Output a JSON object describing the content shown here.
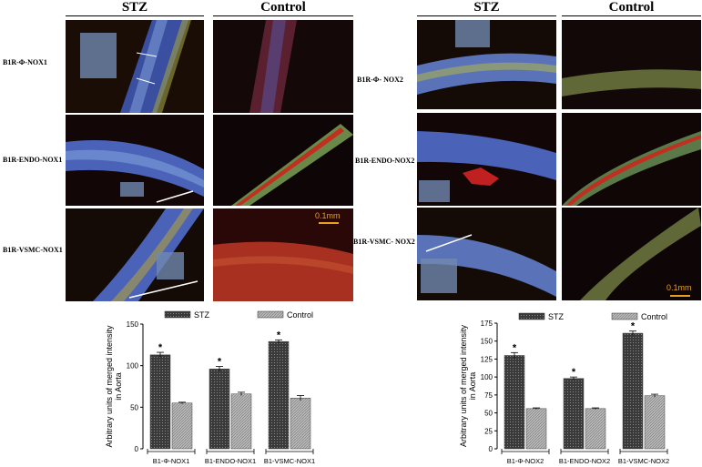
{
  "headers": {
    "left_stz": "STZ",
    "left_control": "Control",
    "right_stz": "STZ",
    "right_control": "Control"
  },
  "row_labels": {
    "left": [
      "B1R-Φ-NOX1",
      "B1R-ENDO-NOX1",
      "B1R-VSMC-NOX1"
    ],
    "right": [
      "B1R-Φ- NOX2",
      "B1R-ENDO-NOX2",
      "B1R-VSMC- NOX2"
    ]
  },
  "scale_bars": {
    "left": "0.1mm",
    "right": "0.1mm"
  },
  "colors": {
    "stz_bar": "#3a3a3a",
    "control_bar": "#b8b8b8",
    "scale_bar": "#e8a020"
  },
  "chart_data": [
    {
      "type": "bar",
      "categories": [
        "B1-Φ-NOX1",
        "B1-ENDO-NOX1",
        "B1-VSMC-NOX1"
      ],
      "series": [
        {
          "name": "STZ",
          "values": [
            113,
            96,
            129
          ],
          "errors": [
            3,
            3,
            2
          ]
        },
        {
          "name": "Control",
          "values": [
            55,
            66,
            61
          ],
          "errors": [
            1,
            2,
            3
          ]
        }
      ],
      "significance": [
        "*",
        "*",
        "*"
      ],
      "ylabel": "Arbitrary units of merged intensity in Aorta",
      "ylim": [
        0,
        150
      ],
      "yticks": [
        0,
        50,
        100,
        150
      ],
      "legend": "top"
    },
    {
      "type": "bar",
      "categories": [
        "B1-Φ-NOX2",
        "B1-ENDO-NOX2",
        "B1-VSMC-NOX2"
      ],
      "series": [
        {
          "name": "STZ",
          "values": [
            130,
            98,
            161
          ],
          "errors": [
            4,
            2,
            3
          ]
        },
        {
          "name": "Control",
          "values": [
            56,
            56,
            74
          ],
          "errors": [
            1,
            1,
            2
          ]
        }
      ],
      "significance": [
        "*",
        "*",
        "*"
      ],
      "ylabel": "Arbitrary units of merged intensity in Aorta",
      "ylim": [
        0,
        175
      ],
      "yticks": [
        0,
        25,
        50,
        75,
        100,
        125,
        150,
        175
      ],
      "legend": "top"
    }
  ]
}
